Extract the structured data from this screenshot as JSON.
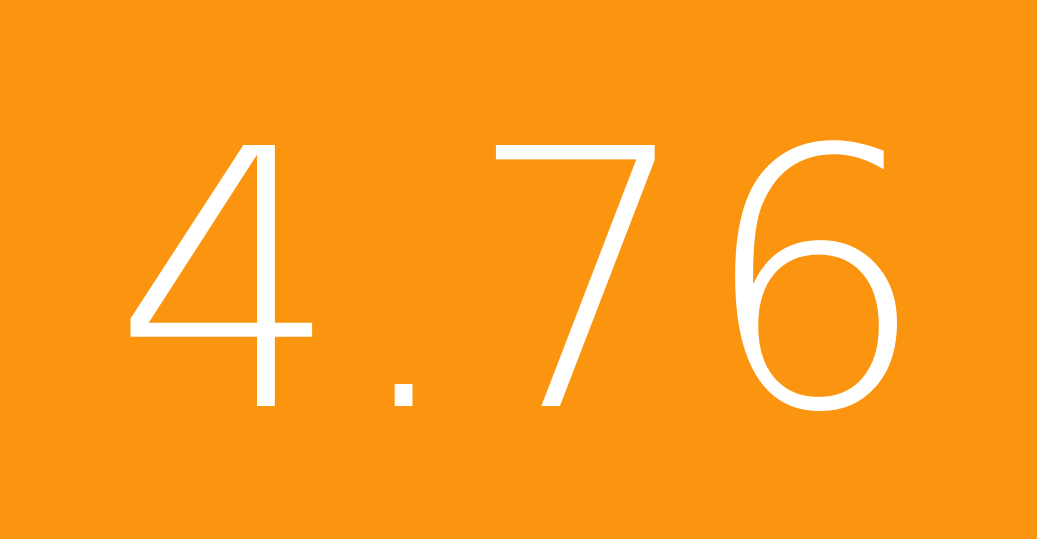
{
  "tile": {
    "value": "4.76",
    "background_color": "#fb950f",
    "text_color": "#ffffff"
  }
}
